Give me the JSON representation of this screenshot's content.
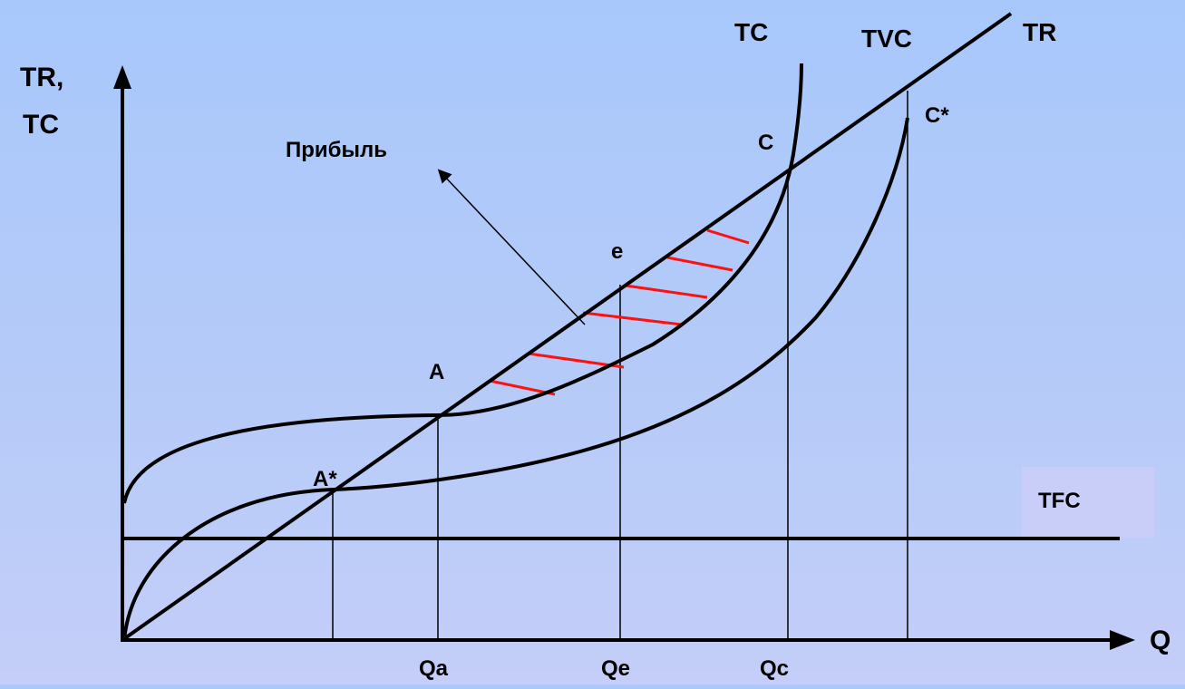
{
  "axes": {
    "y_label_line1": "TR,",
    "y_label_line2": "TC",
    "x_label": "Q"
  },
  "curve_labels": {
    "tc": "TC",
    "tvc": "TVC",
    "tr": "TR",
    "tfc": "TFC"
  },
  "points": {
    "a_star": "A*",
    "a": "A",
    "e": "e",
    "c": "C",
    "c_star": "C*"
  },
  "ticks": {
    "qa": "Qa",
    "qe": "Qe",
    "qc": "Qc"
  },
  "annotation": {
    "profit": "Прибыль"
  },
  "colors": {
    "hatch": "#ff1010",
    "tfc_box": "#c8cef8",
    "curve": "#000000"
  }
}
